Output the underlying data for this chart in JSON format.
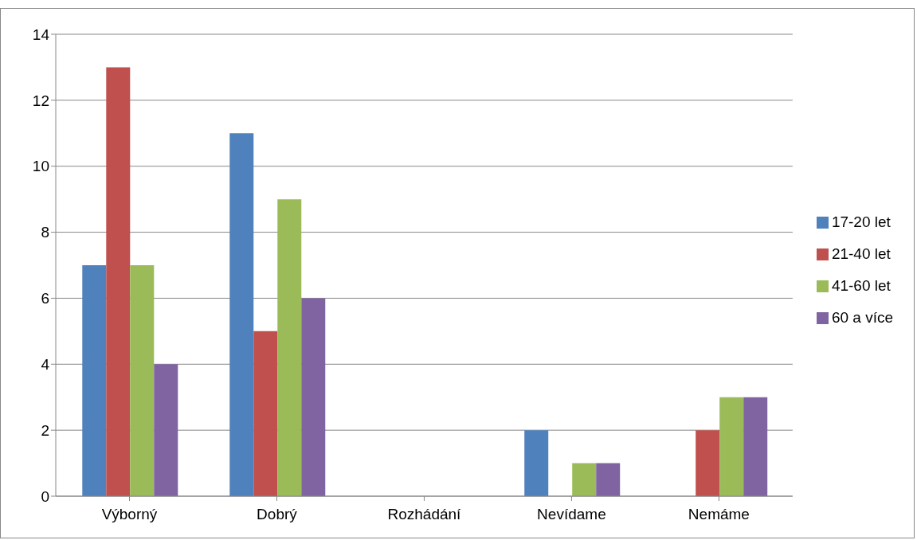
{
  "chart_data": {
    "type": "bar",
    "categories": [
      "Výborný",
      "Dobrý",
      "Rozhádání",
      "Nevídame",
      "Nemáme"
    ],
    "series": [
      {
        "name": "17-20 let",
        "color": "#4f81bd",
        "values": [
          7,
          11,
          0,
          2,
          0
        ]
      },
      {
        "name": "21-40 let",
        "color": "#c0504d",
        "values": [
          13,
          5,
          0,
          0,
          2
        ]
      },
      {
        "name": "41-60 let",
        "color": "#9bbb59",
        "values": [
          7,
          9,
          0,
          1,
          3
        ]
      },
      {
        "name": "60 a více",
        "color": "#8064a2",
        "values": [
          4,
          6,
          0,
          1,
          3
        ]
      }
    ],
    "ylim": [
      0,
      14
    ],
    "yticks": [
      0,
      2,
      4,
      6,
      8,
      10,
      12,
      14
    ],
    "grid": "y",
    "legend": "right"
  }
}
